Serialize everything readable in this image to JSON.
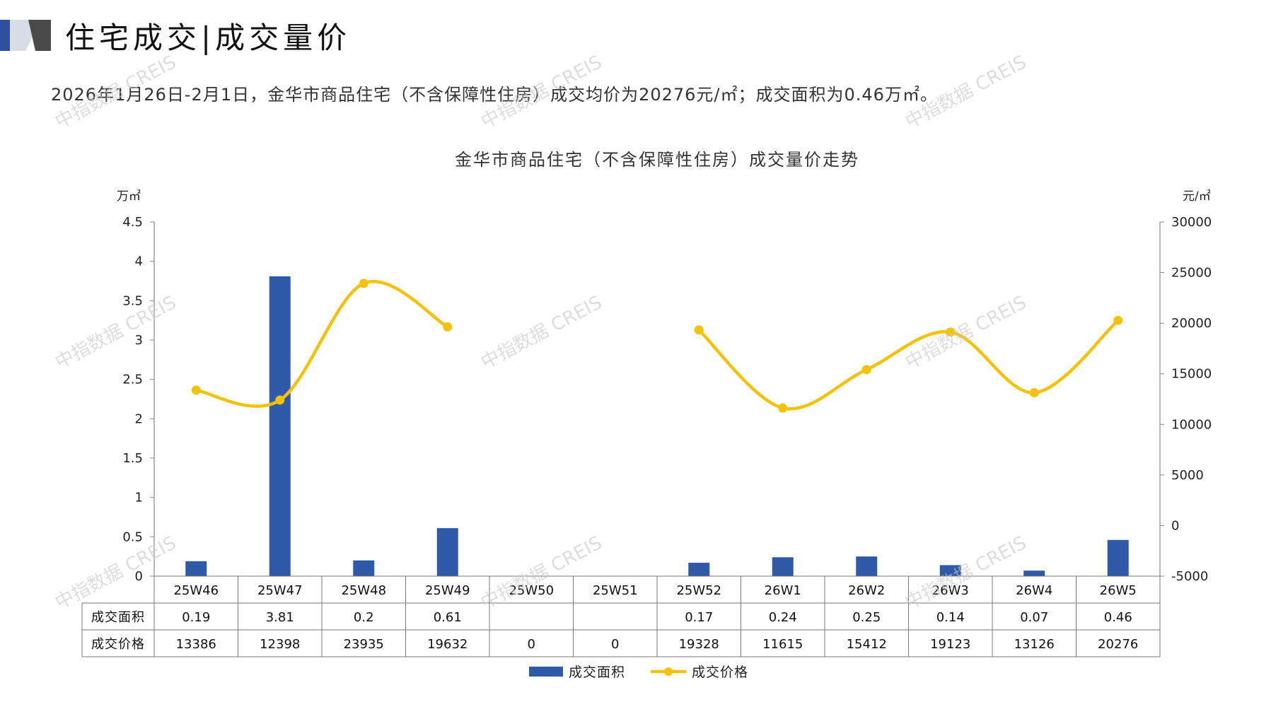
{
  "header": {
    "title": "住宅成交|成交量价",
    "summary": "2026年1月26日-2月1日，金华市商品住宅（不含保障性住房）成交均价为20276元/㎡；成交面积为0.46万㎡。"
  },
  "watermark": "中指数据 CREIS",
  "colors": {
    "bar": "#2f5aa8",
    "line": "#f5c20b",
    "logo_dark": "#2f4fa0",
    "logo_light": "#a8b0c0"
  },
  "chart_data": {
    "type": "bar+line",
    "title": "金华市商品住宅（不含保障性住房）成交量价走势",
    "categories": [
      "25W46",
      "25W47",
      "25W48",
      "25W49",
      "25W50",
      "25W51",
      "25W52",
      "26W1",
      "26W2",
      "26W3",
      "26W4",
      "26W5"
    ],
    "y_left": {
      "unit": "万㎡",
      "range": [
        0,
        4.5
      ],
      "ticks": [
        "0",
        "0.5",
        "1",
        "1.5",
        "2",
        "2.5",
        "3",
        "3.5",
        "4",
        "4.5"
      ]
    },
    "y_right": {
      "unit": "元/㎡",
      "range": [
        -5000,
        30000
      ],
      "ticks": [
        "-5000",
        "0",
        "5000",
        "10000",
        "15000",
        "20000",
        "25000",
        "30000"
      ]
    },
    "series": [
      {
        "name": "成交面积",
        "type": "bar",
        "axis": "left",
        "values": [
          0.19,
          3.81,
          0.2,
          0.61,
          null,
          null,
          0.17,
          0.24,
          0.25,
          0.14,
          0.07,
          0.46
        ],
        "labels": [
          "0.19",
          "3.81",
          "0.2",
          "0.61",
          "",
          "",
          "0.17",
          "0.24",
          "0.25",
          "0.14",
          "0.07",
          "0.46"
        ]
      },
      {
        "name": "成交价格",
        "type": "line",
        "axis": "right",
        "values": [
          13386,
          12398,
          23935,
          19632,
          0,
          0,
          19328,
          11615,
          15412,
          19123,
          13126,
          20276
        ],
        "labels": [
          "13386",
          "12398",
          "23935",
          "19632",
          "0",
          "0",
          "19328",
          "11615",
          "15412",
          "19123",
          "13126",
          "20276"
        ]
      }
    ],
    "legend": {
      "position": "bottom"
    }
  }
}
